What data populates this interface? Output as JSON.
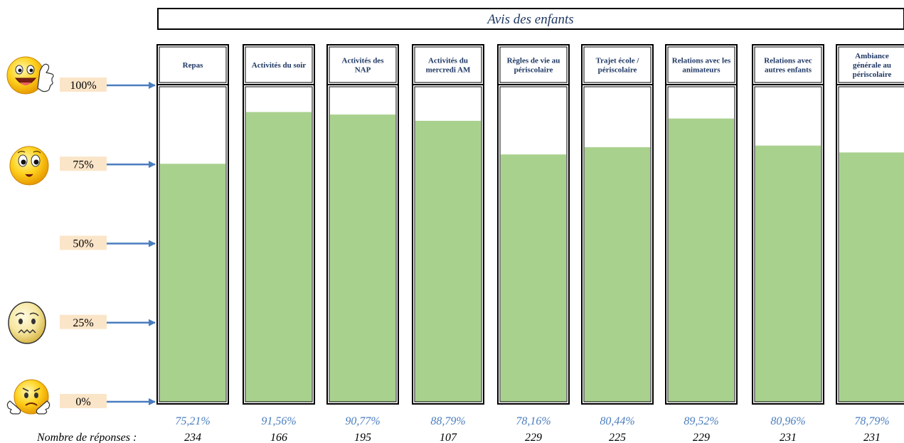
{
  "chart_data": {
    "type": "bar",
    "title": "Avis des enfants",
    "categories": [
      "Repas",
      "Activités du soir",
      "Activités des NAP",
      "Activités du mercredi AM",
      "Règles de vie au périscolaire",
      "Trajet école / périscolaire",
      "Relations avec les animateurs",
      "Relations avec autres enfants",
      "Ambiance générale au périscolaire"
    ],
    "header_lines": [
      [
        "Repas"
      ],
      [
        "Activités du soir"
      ],
      [
        "Activités des",
        "NAP"
      ],
      [
        "Activités du",
        "mercredi AM"
      ],
      [
        "Règles de vie au",
        "périscolaire"
      ],
      [
        "Trajet école /",
        "périscolaire"
      ],
      [
        "Relations avec les",
        "animateurs"
      ],
      [
        "Relations avec",
        "autres enfants"
      ],
      [
        "Ambiance",
        "générale au",
        "périscolaire"
      ]
    ],
    "values": [
      75.21,
      91.56,
      90.77,
      88.79,
      78.16,
      80.44,
      89.52,
      80.96,
      78.79
    ],
    "value_labels": [
      "75,21%",
      "91,56%",
      "90,77%",
      "88,79%",
      "78,16%",
      "80,44%",
      "89,52%",
      "80,96%",
      "78,79%"
    ],
    "responses_label": "Nombre de réponses :",
    "responses": [
      "234",
      "166",
      "195",
      "107",
      "229",
      "225",
      "229",
      "231",
      "231"
    ],
    "yticks": [
      0,
      25,
      50,
      75,
      100
    ],
    "ytick_labels": [
      "0%",
      "25%",
      "50%",
      "75%",
      "100%"
    ],
    "ylim": [
      0,
      100
    ],
    "grid": true,
    "colors": {
      "bar": "#a9d18e",
      "arrow": "#4a7dbf",
      "tick_bg": "#fbe5c8",
      "title": "#1f3864",
      "pct": "#4a7dbf"
    },
    "icons": [
      "very-happy-face-thumbs-up-icon",
      "neutral-face-icon",
      "worried-face-icon",
      "sad-face-icon"
    ]
  }
}
